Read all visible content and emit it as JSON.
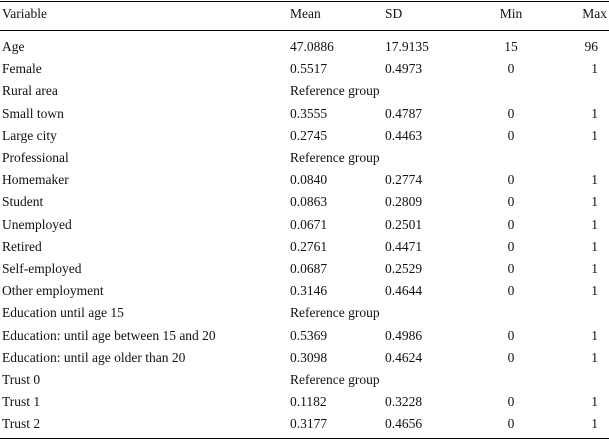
{
  "table": {
    "header": [
      "Variable",
      "Mean",
      "SD",
      "Min",
      "Max"
    ],
    "rows": [
      [
        "Age",
        "47.0886",
        "17.9135",
        "15",
        "96"
      ],
      [
        "Female",
        "0.5517",
        "0.4973",
        "0",
        "1"
      ],
      [
        "Rural area",
        "Reference group"
      ],
      [
        "Small town",
        "0.3555",
        "0.4787",
        "0",
        "1"
      ],
      [
        "Large city",
        "0.2745",
        "0.4463",
        "0",
        "1"
      ],
      [
        "Professional",
        "Reference group"
      ],
      [
        "Homemaker",
        "0.0840",
        "0.2774",
        "0",
        "1"
      ],
      [
        "Student",
        "0.0863",
        "0.2809",
        "0",
        "1"
      ],
      [
        "Unemployed",
        "0.0671",
        "0.2501",
        "0",
        "1"
      ],
      [
        "Retired",
        "0.2761",
        "0.4471",
        "0",
        "1"
      ],
      [
        "Self-employed",
        "0.0687",
        "0.2529",
        "0",
        "1"
      ],
      [
        "Other employment",
        "0.3146",
        "0.4644",
        "0",
        "1"
      ],
      [
        "Education until age 15",
        "Reference group"
      ],
      [
        "Education: until age between 15 and 20",
        "0.5369",
        "0.4986",
        "0",
        "1"
      ],
      [
        "Education: until age older than 20",
        "0.3098",
        "0.4624",
        "0",
        "1"
      ],
      [
        "Trust 0",
        "Reference group"
      ],
      [
        "Trust 1",
        "0.1182",
        "0.3228",
        "0",
        "1"
      ],
      [
        "Trust 2",
        "0.3177",
        "0.4656",
        "0",
        "1"
      ]
    ]
  }
}
